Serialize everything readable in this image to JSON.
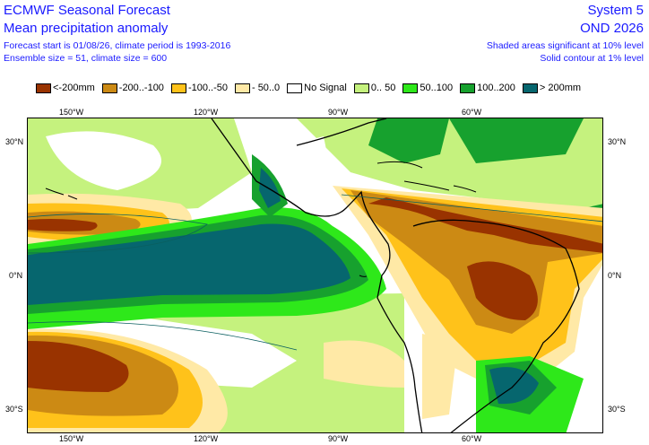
{
  "header": {
    "title": "ECMWF Seasonal Forecast",
    "subtitle": "Mean precipitation anomaly",
    "forecast_info": "Forecast start is 01/08/26, climate period is 1993-2016",
    "ensemble_info": "Ensemble size = 51, climate size = 600",
    "system": "System 5",
    "season": "OND 2026",
    "significance_shaded": "Shaded areas significant at 10% level",
    "significance_contour": "Solid contour at 1% level"
  },
  "legend": [
    {
      "label": "<-200mm",
      "color": "#993300"
    },
    {
      "label": "-200..-100",
      "color": "#cc8a14"
    },
    {
      "label": "-100..-50",
      "color": "#ffc21a"
    },
    {
      "label": "- 50..0",
      "color": "#ffe9a6"
    },
    {
      "label": "No Signal",
      "color": "#ffffff"
    },
    {
      "label": "0.. 50",
      "color": "#c5f27e"
    },
    {
      "label": "50..100",
      "color": "#2ee81a"
    },
    {
      "label": "100..200",
      "color": "#17a12e"
    },
    {
      "label": "> 200mm",
      "color": "#06666e"
    }
  ],
  "axes": {
    "top_lon": [
      "150°W",
      "120°W",
      "90°W",
      "60°W"
    ],
    "bottom_lon": [
      "150°W",
      "120°W",
      "90°W",
      "60°W"
    ],
    "left_lat": [
      "30°N",
      "0°N",
      "30°S"
    ],
    "right_lat": [
      "30°N",
      "0°N",
      "30°S"
    ]
  }
}
